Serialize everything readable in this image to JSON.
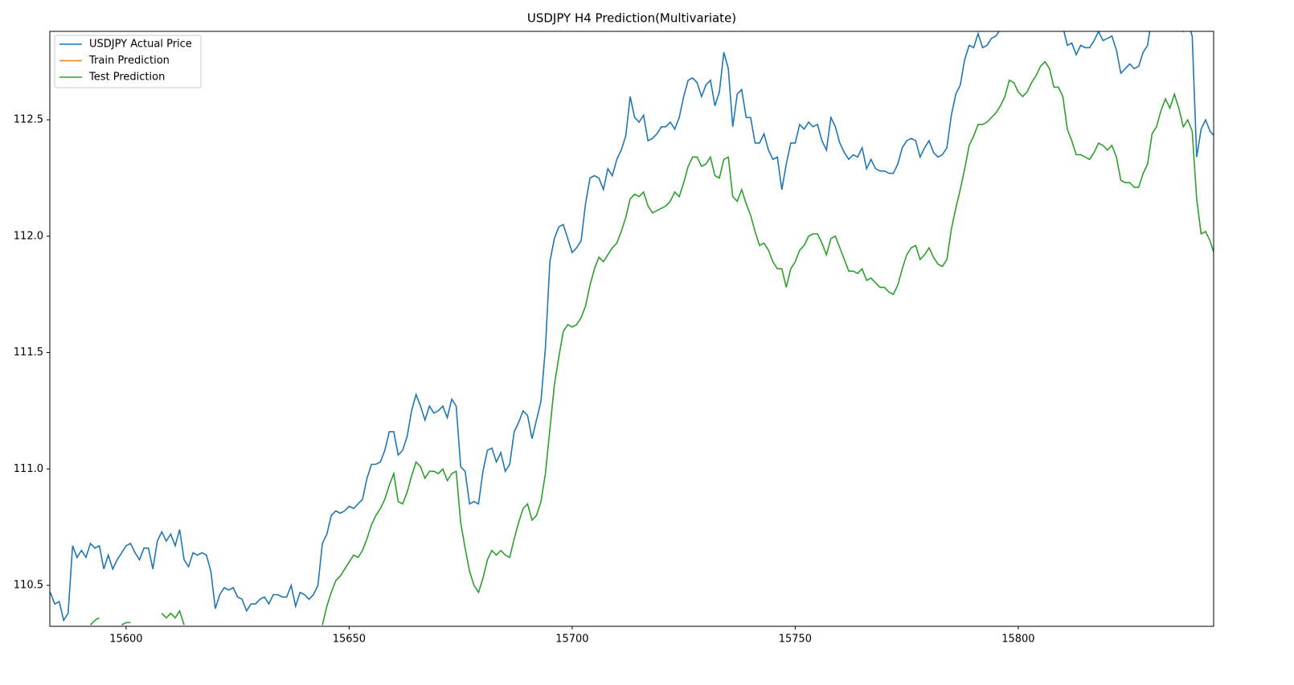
{
  "chart_data": {
    "type": "line",
    "title": "USDJPY H4 Prediction(Multivariate)",
    "xlim": [
      15582.9,
      15843.8
    ],
    "ylim": [
      110.324,
      112.88
    ],
    "xticks": [
      15600,
      15650,
      15700,
      15750,
      15800
    ],
    "yticks": [
      110.5,
      {
        "value": 111.0,
        "label": "111.0"
      },
      111.5,
      {
        "value": 112.0,
        "label": "112.0"
      },
      112.5
    ],
    "legend": "upper left",
    "grid": false,
    "x": [
      15583,
      15584,
      15585,
      15586,
      15587,
      15588,
      15589,
      15590,
      15591,
      15592,
      15593,
      15594,
      15595,
      15596,
      15597,
      15598,
      15599,
      15600,
      15601,
      15602,
      15603,
      15604,
      15605,
      15606,
      15607,
      15608,
      15609,
      15610,
      15611,
      15612,
      15613,
      15614,
      15615,
      15616,
      15617,
      15618,
      15619,
      15620,
      15621,
      15622,
      15623,
      15624,
      15625,
      15626,
      15627,
      15628,
      15629,
      15630,
      15631,
      15632,
      15633,
      15634,
      15635,
      15636,
      15637,
      15638,
      15639,
      15640,
      15641,
      15642,
      15643,
      15644,
      15645,
      15646,
      15647,
      15648,
      15649,
      15650,
      15651,
      15652,
      15653,
      15654,
      15655,
      15656,
      15657,
      15658,
      15659,
      15660,
      15661,
      15662,
      15663,
      15664,
      15665,
      15666,
      15667,
      15668,
      15669,
      15670,
      15671,
      15672,
      15673,
      15674,
      15675,
      15676,
      15677,
      15678,
      15679,
      15680,
      15681,
      15682,
      15683,
      15684,
      15685,
      15686,
      15687,
      15688,
      15689,
      15690,
      15691,
      15692,
      15693,
      15694,
      15695,
      15696,
      15697,
      15698,
      15699,
      15700,
      15701,
      15702,
      15703,
      15704,
      15705,
      15706,
      15707,
      15708,
      15709,
      15710,
      15711,
      15712,
      15713,
      15714,
      15715,
      15716,
      15717,
      15718,
      15719,
      15720,
      15721,
      15722,
      15723,
      15724,
      15725,
      15726,
      15727,
      15728,
      15729,
      15730,
      15731,
      15732,
      15733,
      15734,
      15735,
      15736,
      15737,
      15738,
      15739,
      15740,
      15741,
      15742,
      15743,
      15744,
      15745,
      15746,
      15747,
      15748,
      15749,
      15750,
      15751,
      15752,
      15753,
      15754,
      15755,
      15756,
      15757,
      15758,
      15759,
      15760,
      15761,
      15762,
      15763,
      15764,
      15765,
      15766,
      15767,
      15768,
      15769,
      15770,
      15771,
      15772,
      15773,
      15774,
      15775,
      15776,
      15777,
      15778,
      15779,
      15780,
      15781,
      15782,
      15783,
      15784,
      15785,
      15786,
      15787,
      15788,
      15789,
      15790,
      15791,
      15792,
      15793,
      15794,
      15795,
      15796,
      15797,
      15798,
      15799,
      15800,
      15801,
      15802,
      15803,
      15804,
      15805,
      15806,
      15807,
      15808,
      15809,
      15810,
      15811,
      15812,
      15813,
      15814,
      15815,
      15816,
      15817,
      15818,
      15819,
      15820,
      15821,
      15822,
      15823,
      15824,
      15825,
      15826,
      15827,
      15828,
      15829,
      15830,
      15831,
      15832,
      15833,
      15834,
      15835,
      15836,
      15837,
      15838,
      15839,
      15840,
      15841,
      15842,
      15843,
      15844
    ],
    "series": [
      {
        "name": "USDJPY Actual Price",
        "color": "#1f77b4",
        "values": [
          110.47,
          110.42,
          110.43,
          110.35,
          110.38,
          110.67,
          110.62,
          110.65,
          110.62,
          110.68,
          110.66,
          110.67,
          110.57,
          110.63,
          110.57,
          110.61,
          110.64,
          110.67,
          110.68,
          110.64,
          110.61,
          110.66,
          110.66,
          110.57,
          110.69,
          110.73,
          110.69,
          110.72,
          110.67,
          110.74,
          110.61,
          110.58,
          110.64,
          110.63,
          110.64,
          110.63,
          110.56,
          110.4,
          110.46,
          110.49,
          110.48,
          110.49,
          110.45,
          110.44,
          110.39,
          110.42,
          110.42,
          110.44,
          110.45,
          110.42,
          110.46,
          110.46,
          110.45,
          110.45,
          110.5,
          110.41,
          110.47,
          110.46,
          110.44,
          110.46,
          110.5,
          110.68,
          110.72,
          110.8,
          110.82,
          110.81,
          110.82,
          110.84,
          110.83,
          110.85,
          110.87,
          110.96,
          111.02,
          111.02,
          111.03,
          111.08,
          111.16,
          111.16,
          111.06,
          111.08,
          111.14,
          111.25,
          111.32,
          111.27,
          111.21,
          111.27,
          111.24,
          111.25,
          111.27,
          111.22,
          111.3,
          111.27,
          111.01,
          110.99,
          110.85,
          110.86,
          110.85,
          110.99,
          111.08,
          111.09,
          111.03,
          111.07,
          110.99,
          111.02,
          111.16,
          111.2,
          111.25,
          111.23,
          111.13,
          111.21,
          111.29,
          111.52,
          111.89,
          111.99,
          112.04,
          112.05,
          111.99,
          111.93,
          111.95,
          111.98,
          112.14,
          112.25,
          112.26,
          112.25,
          112.2,
          112.29,
          112.26,
          112.33,
          112.37,
          112.43,
          112.6,
          112.51,
          112.49,
          112.52,
          112.41,
          112.42,
          112.44,
          112.47,
          112.47,
          112.49,
          112.46,
          112.51,
          112.6,
          112.67,
          112.68,
          112.66,
          112.6,
          112.65,
          112.67,
          112.56,
          112.62,
          112.79,
          112.72,
          112.47,
          112.61,
          112.63,
          112.51,
          112.51,
          112.4,
          112.4,
          112.44,
          112.37,
          112.33,
          112.34,
          112.2,
          112.31,
          112.4,
          112.4,
          112.48,
          112.46,
          112.49,
          112.47,
          112.48,
          112.41,
          112.37,
          112.51,
          112.47,
          112.4,
          112.36,
          112.33,
          112.35,
          112.34,
          112.38,
          112.29,
          112.33,
          112.29,
          112.28,
          112.28,
          112.27,
          112.27,
          112.31,
          112.38,
          112.41,
          112.42,
          112.41,
          112.34,
          112.38,
          112.41,
          112.36,
          112.34,
          112.35,
          112.38,
          112.52,
          112.61,
          112.65,
          112.76,
          112.82,
          112.81,
          112.87,
          112.81,
          112.82,
          112.85,
          112.86,
          112.89,
          112.93,
          112.95,
          112.95,
          112.96,
          112.97,
          112.96,
          112.95,
          112.95,
          112.96,
          112.97,
          112.96,
          112.98,
          112.96,
          112.9,
          112.82,
          112.83,
          112.78,
          112.82,
          112.81,
          112.81,
          112.84,
          112.88,
          112.84,
          112.85,
          112.86,
          112.8,
          112.7,
          112.72,
          112.74,
          112.72,
          112.73,
          112.79,
          112.82,
          112.95,
          112.98,
          112.99,
          112.97,
          112.96,
          112.93,
          112.91,
          112.88,
          112.92,
          112.86,
          112.34,
          112.46,
          112.5,
          112.45,
          112.43
        ]
      },
      {
        "name": "Train Prediction",
        "color": "#ff7f0e",
        "values": [
          null,
          null,
          null,
          null,
          null,
          null,
          null,
          null,
          null,
          null,
          null,
          null,
          null,
          null,
          null,
          null,
          null,
          null,
          null,
          null,
          null,
          null,
          null,
          null,
          null,
          null,
          null,
          null,
          null,
          null,
          null,
          null,
          null,
          null,
          null,
          null,
          null,
          null,
          null,
          null,
          null,
          null,
          null,
          null,
          null,
          null,
          null,
          null,
          null,
          null,
          null,
          null,
          null,
          null,
          null,
          null,
          null,
          null,
          null,
          null,
          null,
          null,
          null,
          null,
          null,
          null,
          null,
          null,
          null,
          null,
          null,
          null,
          null,
          null,
          null,
          null,
          null,
          null,
          null,
          null,
          null,
          null,
          null,
          null,
          null,
          null,
          null,
          null,
          null,
          null,
          null,
          null,
          null,
          null,
          null,
          null,
          null,
          null,
          null,
          null,
          null,
          null,
          null,
          null,
          null,
          null,
          null,
          null,
          null,
          null,
          null,
          null,
          null,
          null,
          null,
          null,
          null,
          null,
          null,
          null,
          null,
          null,
          null,
          null,
          null,
          null,
          null,
          null,
          null,
          null,
          null,
          null,
          null,
          null,
          null,
          null,
          null,
          null,
          null,
          null,
          null,
          null,
          null,
          null,
          null,
          null,
          null,
          null,
          null,
          null,
          null,
          null,
          null,
          null,
          null,
          null,
          null,
          null,
          null,
          null,
          null,
          null,
          null,
          null,
          null,
          null,
          null,
          null,
          null,
          null,
          null,
          null,
          null,
          null,
          null,
          null,
          null,
          null,
          null,
          null,
          null,
          null,
          null,
          null,
          null,
          null,
          null,
          null,
          null,
          null,
          null,
          null,
          null,
          null,
          null,
          null,
          null,
          null,
          null,
          null,
          null,
          null,
          null,
          null,
          null,
          null,
          null,
          null,
          null,
          null,
          null,
          null,
          null,
          null,
          null,
          null,
          null,
          null,
          null,
          null,
          null,
          null,
          null,
          null,
          null,
          null,
          null,
          null,
          null,
          null,
          null,
          null,
          null,
          null,
          null,
          null,
          null,
          null,
          null,
          null,
          null,
          null,
          null,
          null,
          null,
          null,
          null,
          null,
          null,
          null,
          null,
          null,
          null,
          null,
          null,
          null,
          null,
          null,
          null,
          null,
          null,
          null
        ]
      },
      {
        "name": "Test Prediction",
        "color": "#2ca02c",
        "values": [
          null,
          null,
          null,
          null,
          null,
          null,
          null,
          null,
          null,
          110.33,
          110.35,
          110.36,
          null,
          null,
          null,
          null,
          110.33,
          110.34,
          110.34,
          null,
          null,
          null,
          110.34,
          null,
          null,
          110.38,
          110.36,
          110.38,
          110.36,
          110.39,
          110.33,
          null,
          null,
          null,
          null,
          null,
          null,
          null,
          null,
          null,
          null,
          null,
          null,
          null,
          null,
          null,
          null,
          null,
          null,
          null,
          null,
          null,
          null,
          null,
          null,
          null,
          null,
          null,
          null,
          null,
          null,
          110.33,
          110.41,
          110.47,
          110.52,
          110.54,
          110.57,
          110.6,
          110.63,
          110.62,
          110.65,
          110.7,
          110.76,
          110.8,
          110.83,
          110.87,
          110.93,
          110.98,
          110.86,
          110.85,
          110.9,
          110.97,
          111.03,
          111.01,
          110.96,
          110.99,
          110.99,
          110.98,
          111.0,
          110.95,
          110.98,
          110.99,
          110.77,
          110.66,
          110.56,
          110.5,
          110.47,
          110.53,
          110.61,
          110.65,
          110.63,
          110.65,
          110.63,
          110.62,
          110.7,
          110.77,
          110.83,
          110.85,
          110.78,
          110.8,
          110.86,
          110.98,
          111.17,
          111.36,
          111.48,
          111.59,
          111.62,
          111.61,
          111.62,
          111.65,
          111.7,
          111.79,
          111.86,
          111.91,
          111.89,
          111.92,
          111.95,
          111.97,
          112.02,
          112.08,
          112.16,
          112.18,
          112.17,
          112.19,
          112.13,
          112.1,
          112.11,
          112.12,
          112.13,
          112.15,
          112.19,
          112.17,
          112.23,
          112.3,
          112.34,
          112.34,
          112.3,
          112.31,
          112.34,
          112.26,
          112.25,
          112.33,
          112.34,
          112.17,
          112.15,
          112.2,
          112.14,
          112.09,
          112.02,
          111.96,
          111.97,
          111.94,
          111.89,
          111.86,
          111.86,
          111.78,
          111.86,
          111.89,
          111.94,
          111.96,
          112.0,
          112.01,
          112.01,
          111.97,
          111.92,
          111.99,
          112.0,
          111.95,
          111.9,
          111.85,
          111.85,
          111.84,
          111.86,
          111.81,
          111.82,
          111.8,
          111.78,
          111.78,
          111.76,
          111.75,
          111.79,
          111.86,
          111.92,
          111.95,
          111.96,
          111.9,
          111.92,
          111.95,
          111.91,
          111.88,
          111.87,
          111.9,
          112.03,
          112.12,
          112.2,
          112.29,
          112.39,
          112.43,
          112.48,
          112.48,
          112.49,
          112.51,
          112.53,
          112.56,
          112.6,
          112.67,
          112.66,
          112.62,
          112.6,
          112.62,
          112.66,
          112.69,
          112.73,
          112.75,
          112.72,
          112.64,
          112.64,
          112.6,
          112.46,
          112.41,
          112.35,
          112.35,
          112.34,
          112.33,
          112.36,
          112.4,
          112.39,
          112.37,
          112.39,
          112.34,
          112.24,
          112.23,
          112.23,
          112.21,
          112.21,
          112.27,
          112.31,
          112.44,
          112.47,
          112.54,
          112.59,
          112.55,
          112.61,
          112.55,
          112.47,
          112.5,
          112.45,
          112.16,
          112.01,
          112.02,
          111.98,
          111.92
        ]
      }
    ]
  }
}
